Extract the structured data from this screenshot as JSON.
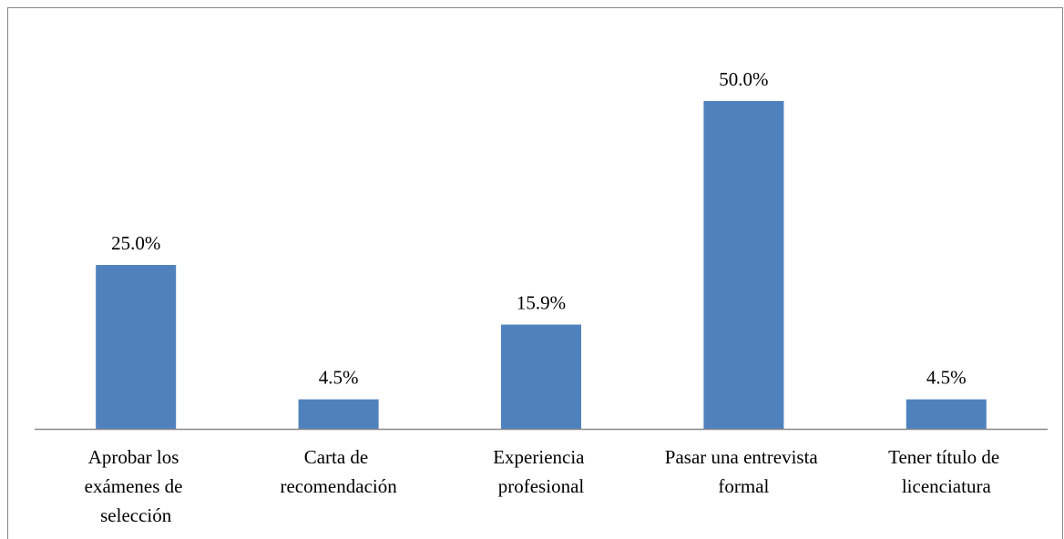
{
  "chart_data": {
    "type": "bar",
    "categories": [
      "Aprobar los exámenes de selección",
      "Carta de recomendación",
      "Experiencia profesional",
      "Pasar una entrevista formal",
      "Tener título de licenciatura"
    ],
    "values": [
      25.0,
      4.5,
      15.9,
      50.0,
      4.5
    ],
    "value_labels": [
      "25.0%",
      "4.5%",
      "15.9%",
      "50.0%",
      "4.5%"
    ],
    "color": "#4f81bd"
  }
}
